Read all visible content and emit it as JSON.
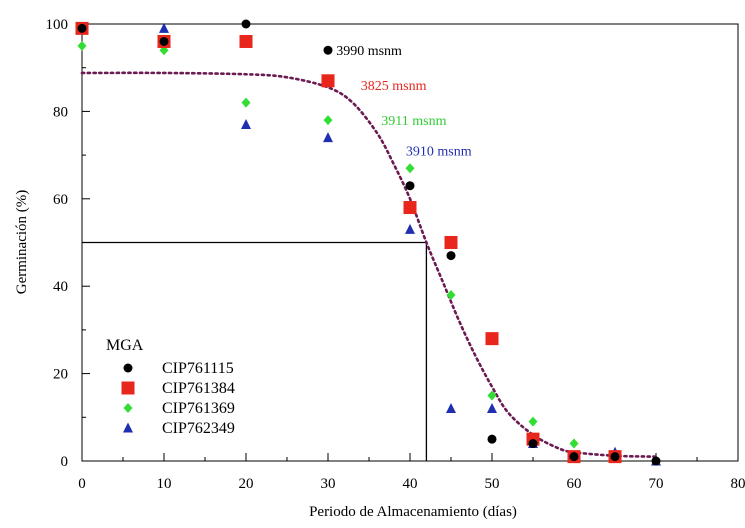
{
  "chart_data": {
    "type": "scatter",
    "xlabel": "Periodo de Almacenamiento (días)",
    "ylabel": "Germinación (%)",
    "xlim": [
      0,
      80
    ],
    "ylim": [
      0,
      100
    ],
    "x_ticks": [
      0,
      10,
      20,
      30,
      40,
      50,
      60,
      70,
      80
    ],
    "y_ticks": [
      0,
      20,
      40,
      60,
      80,
      100
    ],
    "x_minor_step": 5,
    "y_minor_step": 10,
    "legend": {
      "title": "MGA",
      "placement": "bottom-left"
    },
    "series": [
      {
        "name": "CIP761115",
        "marker": "circle",
        "color": "#000000",
        "points": [
          [
            0,
            99
          ],
          [
            10,
            96
          ],
          [
            20,
            100
          ],
          [
            30,
            94
          ],
          [
            40,
            63
          ],
          [
            45,
            47
          ],
          [
            50,
            5
          ],
          [
            55,
            4
          ],
          [
            60,
            1
          ],
          [
            65,
            1
          ],
          [
            70,
            0
          ]
        ]
      },
      {
        "name": "CIP761384",
        "marker": "square",
        "color": "#e8261c",
        "points": [
          [
            0,
            99
          ],
          [
            10,
            96
          ],
          [
            20,
            96
          ],
          [
            30,
            87
          ],
          [
            40,
            58
          ],
          [
            45,
            50
          ],
          [
            50,
            28
          ],
          [
            55,
            5
          ],
          [
            60,
            1
          ],
          [
            65,
            1
          ]
        ]
      },
      {
        "name": "CIP761369",
        "marker": "diamond",
        "color": "#33dd33",
        "points": [
          [
            0,
            95
          ],
          [
            10,
            94
          ],
          [
            20,
            82
          ],
          [
            30,
            78
          ],
          [
            40,
            67
          ],
          [
            45,
            38
          ],
          [
            50,
            15
          ],
          [
            55,
            9
          ],
          [
            60,
            4
          ],
          [
            65,
            1
          ]
        ]
      },
      {
        "name": "CIP762349",
        "marker": "triangle",
        "color": "#1f2fb0",
        "points": [
          [
            0,
            99
          ],
          [
            10,
            99
          ],
          [
            20,
            77
          ],
          [
            30,
            74
          ],
          [
            40,
            53
          ],
          [
            45,
            12
          ],
          [
            50,
            12
          ],
          [
            55,
            4
          ],
          [
            60,
            1
          ],
          [
            65,
            2
          ],
          [
            70,
            0
          ]
        ]
      }
    ],
    "fit_curve": {
      "style": "dotted",
      "color": "#6b1a52",
      "points": [
        [
          0,
          88.8
        ],
        [
          10,
          88.8
        ],
        [
          20,
          88.5
        ],
        [
          25,
          87.8
        ],
        [
          30,
          85.5
        ],
        [
          33,
          82
        ],
        [
          36,
          75
        ],
        [
          38,
          68
        ],
        [
          40,
          60
        ],
        [
          42,
          50
        ],
        [
          44,
          41
        ],
        [
          46,
          32
        ],
        [
          48,
          24
        ],
        [
          50,
          17
        ],
        [
          52,
          11
        ],
        [
          55,
          6
        ],
        [
          58,
          3
        ],
        [
          60,
          2
        ],
        [
          65,
          1.2
        ],
        [
          70,
          1
        ]
      ]
    },
    "reference_lines": [
      {
        "from": [
          0,
          50
        ],
        "to": [
          42,
          50
        ]
      },
      {
        "from": [
          42,
          50
        ],
        "to": [
          42,
          0
        ]
      }
    ],
    "annotations": [
      {
        "text": "3990 msnm",
        "x": 31,
        "y": 94,
        "color": "#000000"
      },
      {
        "text": "3825 msnm",
        "x": 34,
        "y": 86,
        "color": "#e8261c"
      },
      {
        "text": "3911 msnm",
        "x": 36.5,
        "y": 78,
        "color": "#33cc33"
      },
      {
        "text": "3910 msnm",
        "x": 39.5,
        "y": 71,
        "color": "#1f2fb0"
      }
    ]
  }
}
